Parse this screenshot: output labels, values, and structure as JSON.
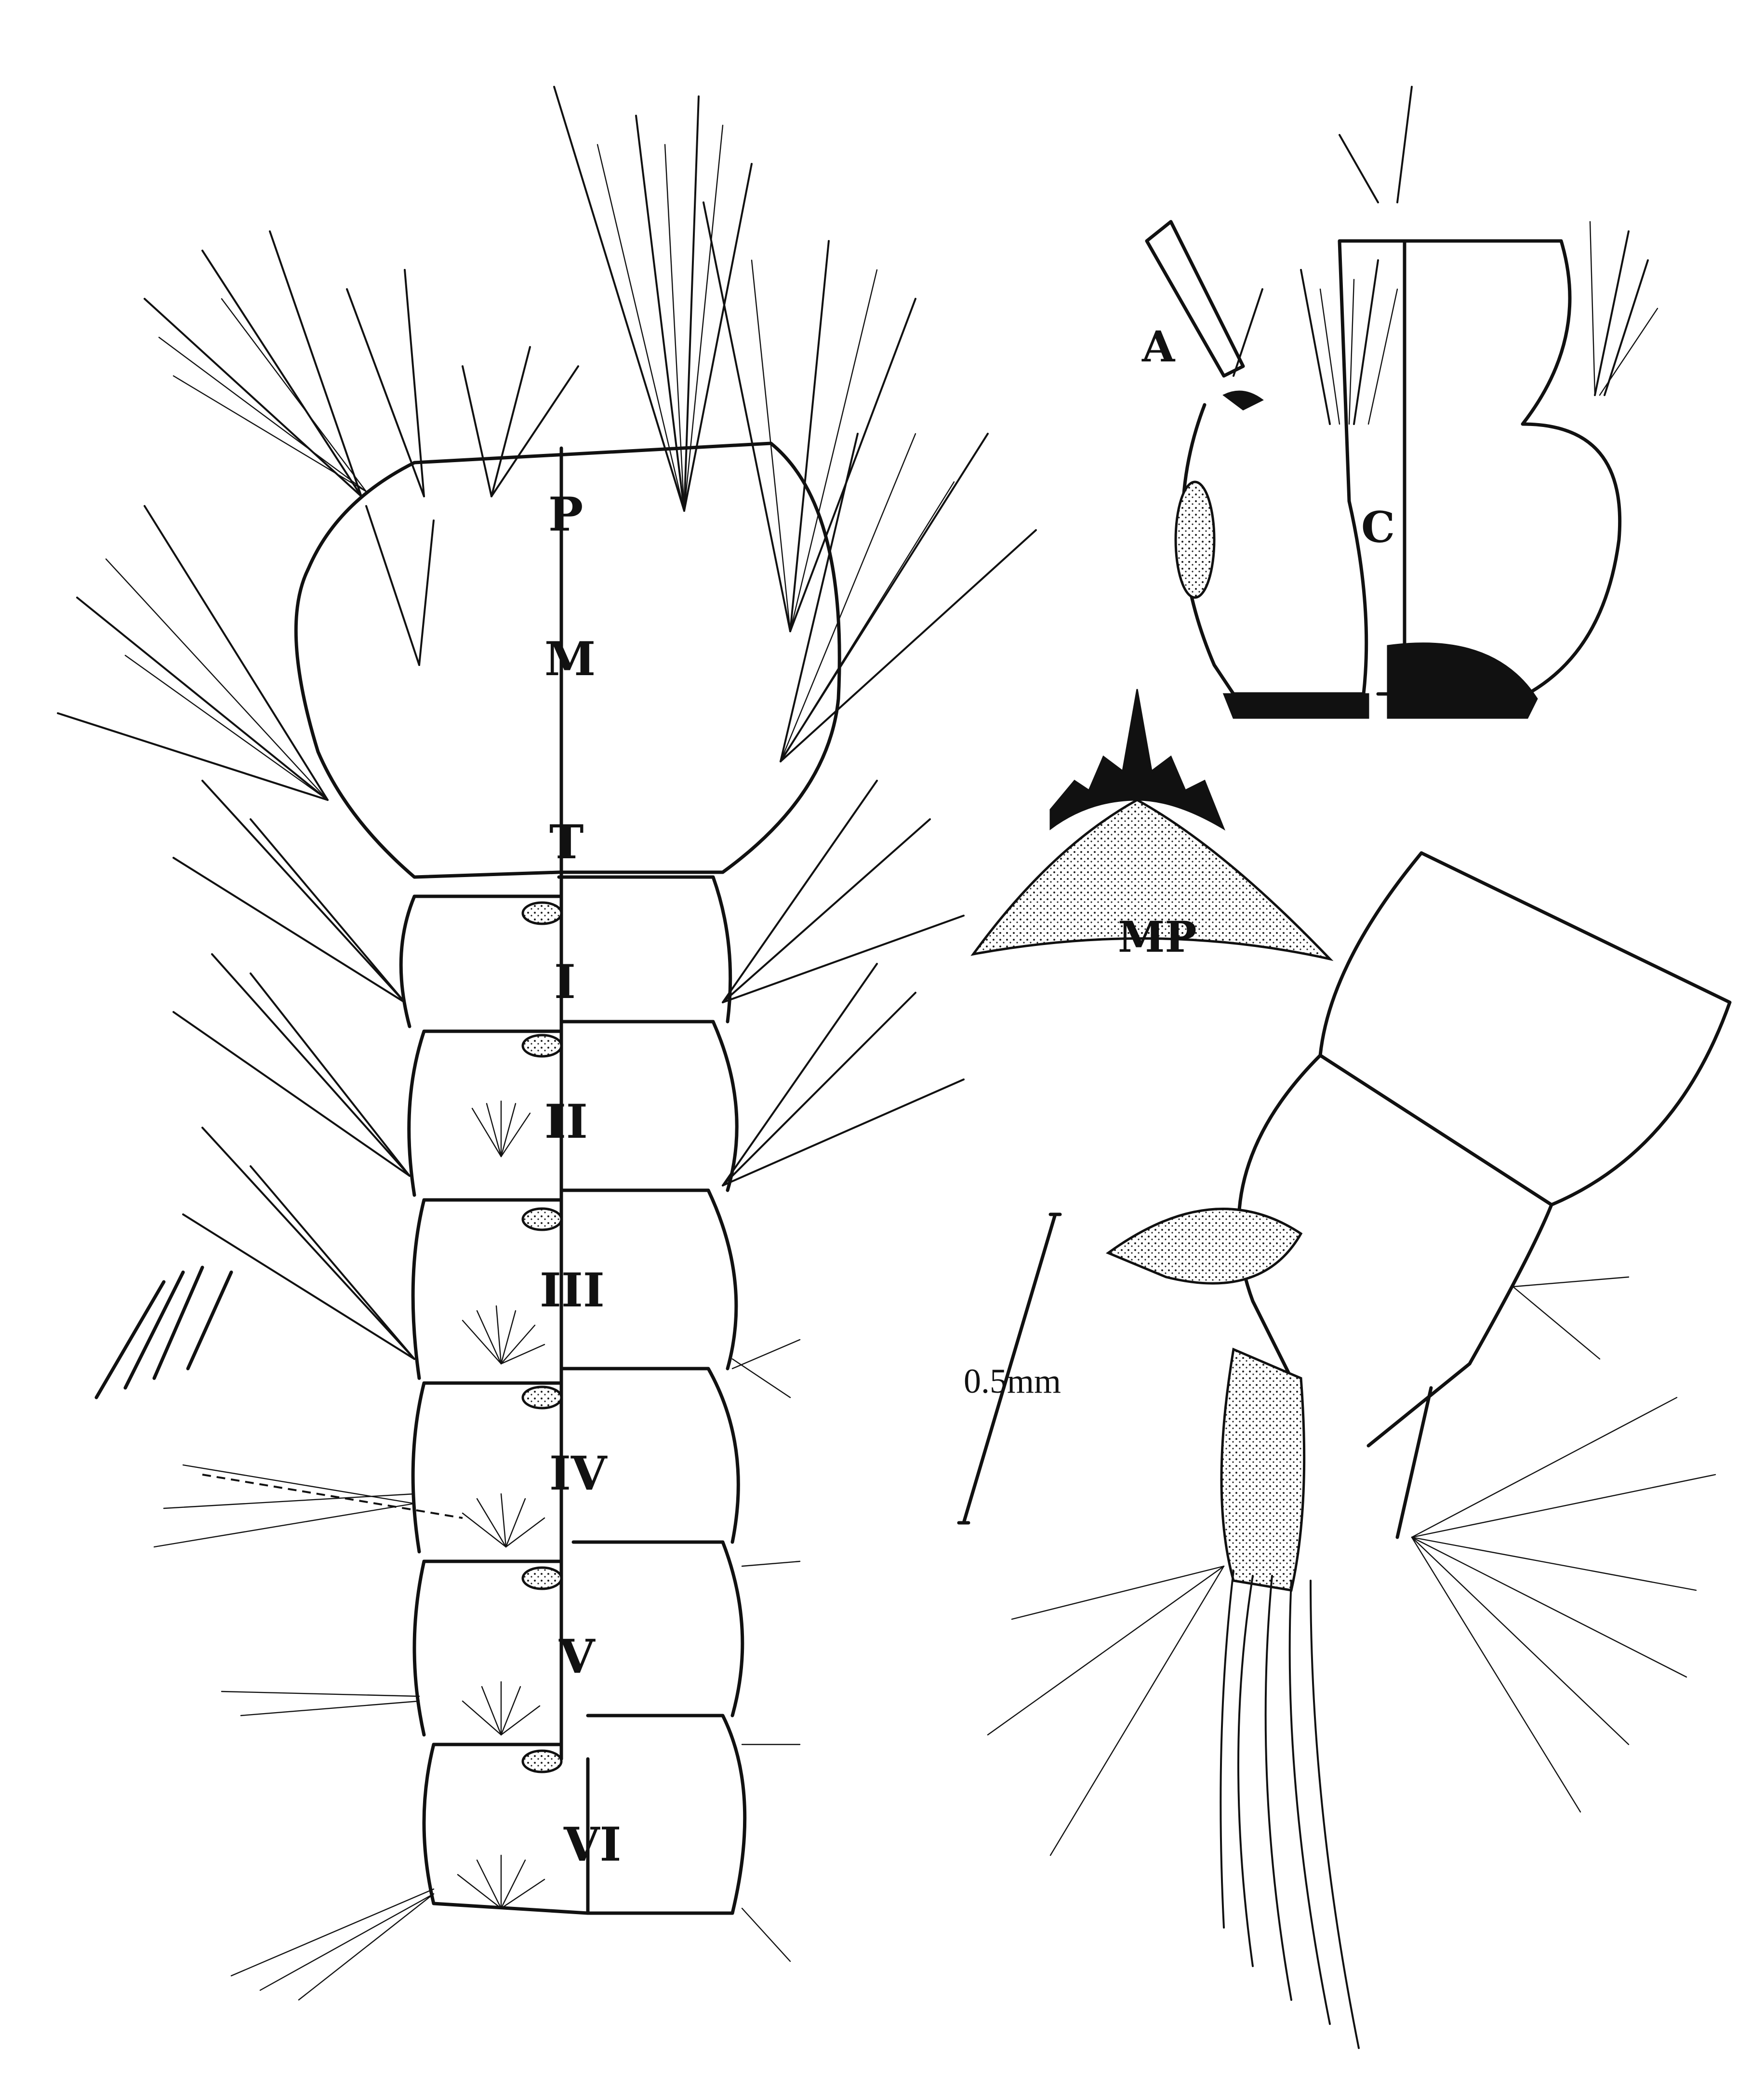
{
  "thorax_labels": {
    "prothorax": "P",
    "mesothorax": "M",
    "metathorax": "T"
  },
  "segment_labels": [
    "I",
    "II",
    "III",
    "IV",
    "V",
    "VI"
  ],
  "head_labels": {
    "antenna": "A",
    "clypeus": "C"
  },
  "mentum_label": "MP",
  "scale": {
    "text": "0.5mm"
  }
}
